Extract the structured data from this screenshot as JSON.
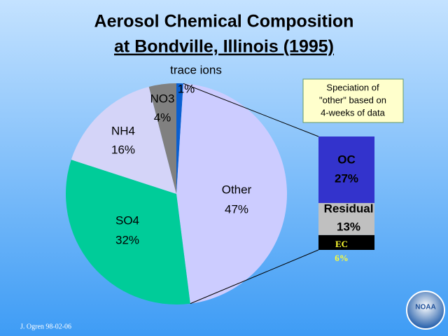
{
  "chart_data": [
    {
      "type": "pie",
      "title": [
        "Aerosol Chemical Composition",
        "at Bondville, Illinois (1995)"
      ],
      "categories": [
        "trace ions",
        "Other",
        "SO4",
        "NH4",
        "NO3"
      ],
      "values": [
        1,
        47,
        32,
        16,
        4
      ],
      "value_labels": [
        "1%",
        "47%",
        "32%",
        "16%",
        "4%"
      ],
      "colors": [
        "#0a5fd0",
        "#ccccff",
        "#00cc99",
        "#d4d4f8",
        "#808080"
      ]
    },
    {
      "type": "stacked-bar",
      "categories": [
        "OC",
        "Residual",
        "EC"
      ],
      "values": [
        27,
        13,
        6
      ],
      "value_labels": [
        "27%",
        "13%",
        "6%"
      ],
      "colors": [
        "#3333cc",
        "#c0c0c0",
        "#000000"
      ],
      "note": [
        "Speciation of",
        "\"other\" based on",
        "4-weeks of data"
      ]
    }
  ],
  "footer": "J. Ogren 98-02-06",
  "logo": "NOAA"
}
